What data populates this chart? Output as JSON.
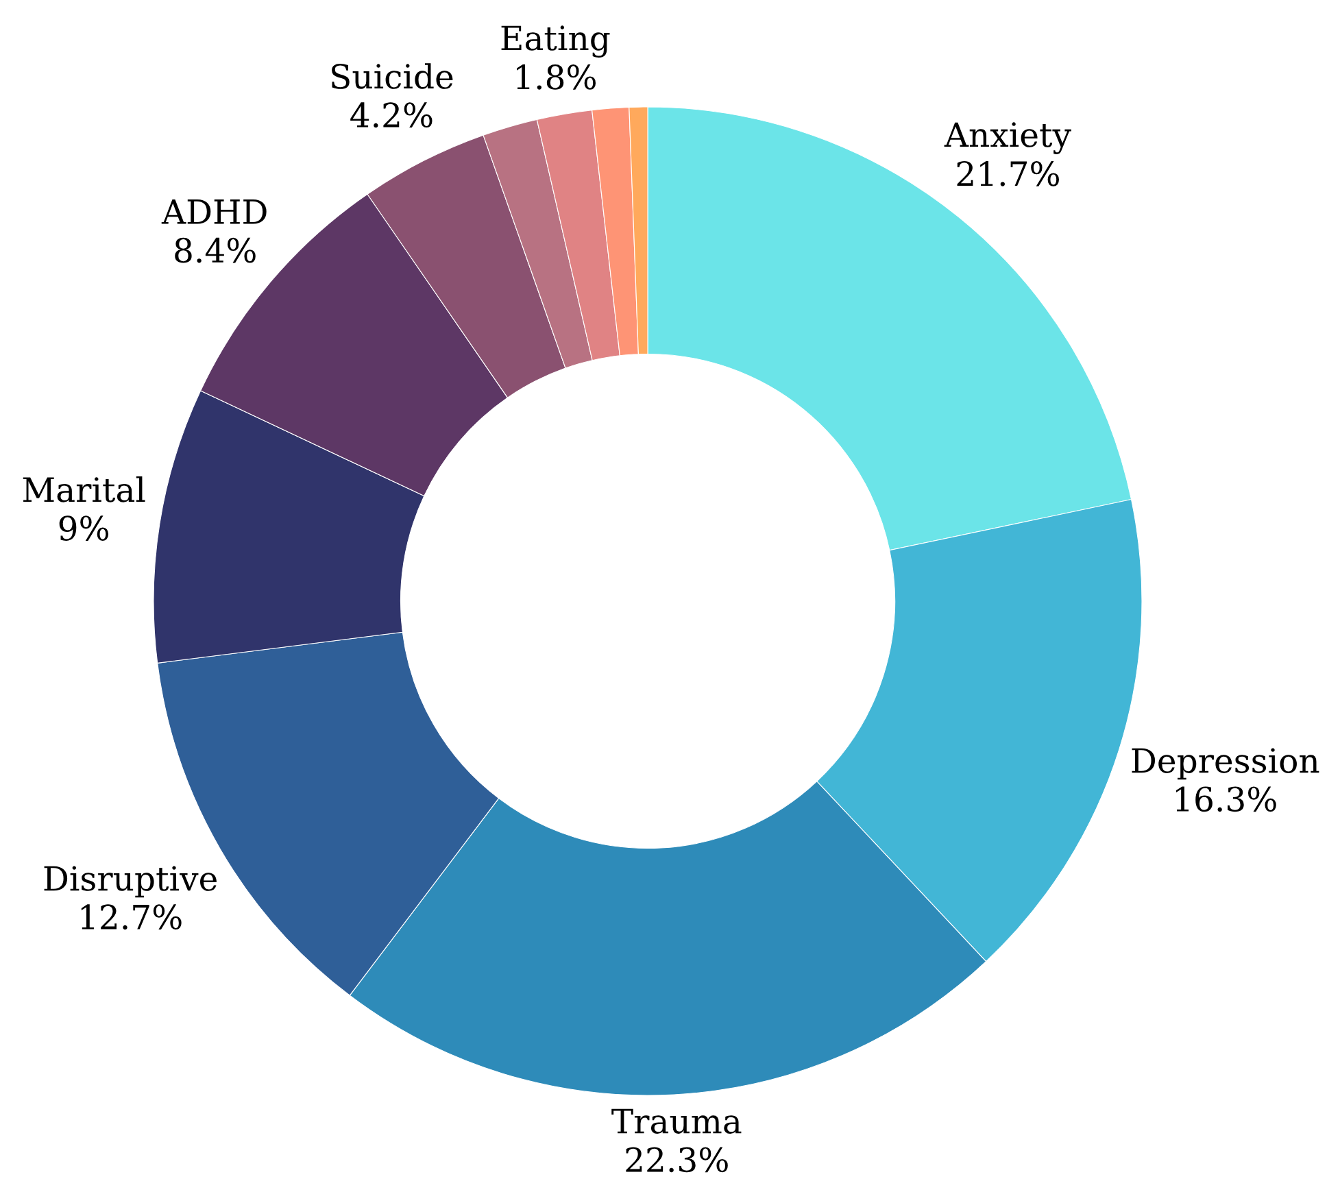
{
  "chart_data": {
    "type": "donut",
    "categories": [
      "Anxiety",
      "Depression",
      "Trauma",
      "Disruptive",
      "Marital",
      "ADHD",
      "Suicide",
      null,
      "Eating",
      null,
      null
    ],
    "values": [
      21.7,
      16.3,
      22.3,
      12.7,
      9,
      8.4,
      4.2,
      1.8,
      1.8,
      1.2,
      0.6
    ],
    "value_labels": [
      "21.7%",
      "16.3%",
      "22.3%",
      "12.7%",
      "9%",
      "8.4%",
      "4.2%",
      null,
      "1.8%",
      null,
      null
    ],
    "colors": [
      "#6be4e8",
      "#42b6d6",
      "#2e8bb9",
      "#2f5f98",
      "#30346b",
      "#5d3765",
      "#8a5170",
      "#b87282",
      "#e08384",
      "#fe9475",
      "#ffa95c"
    ]
  }
}
